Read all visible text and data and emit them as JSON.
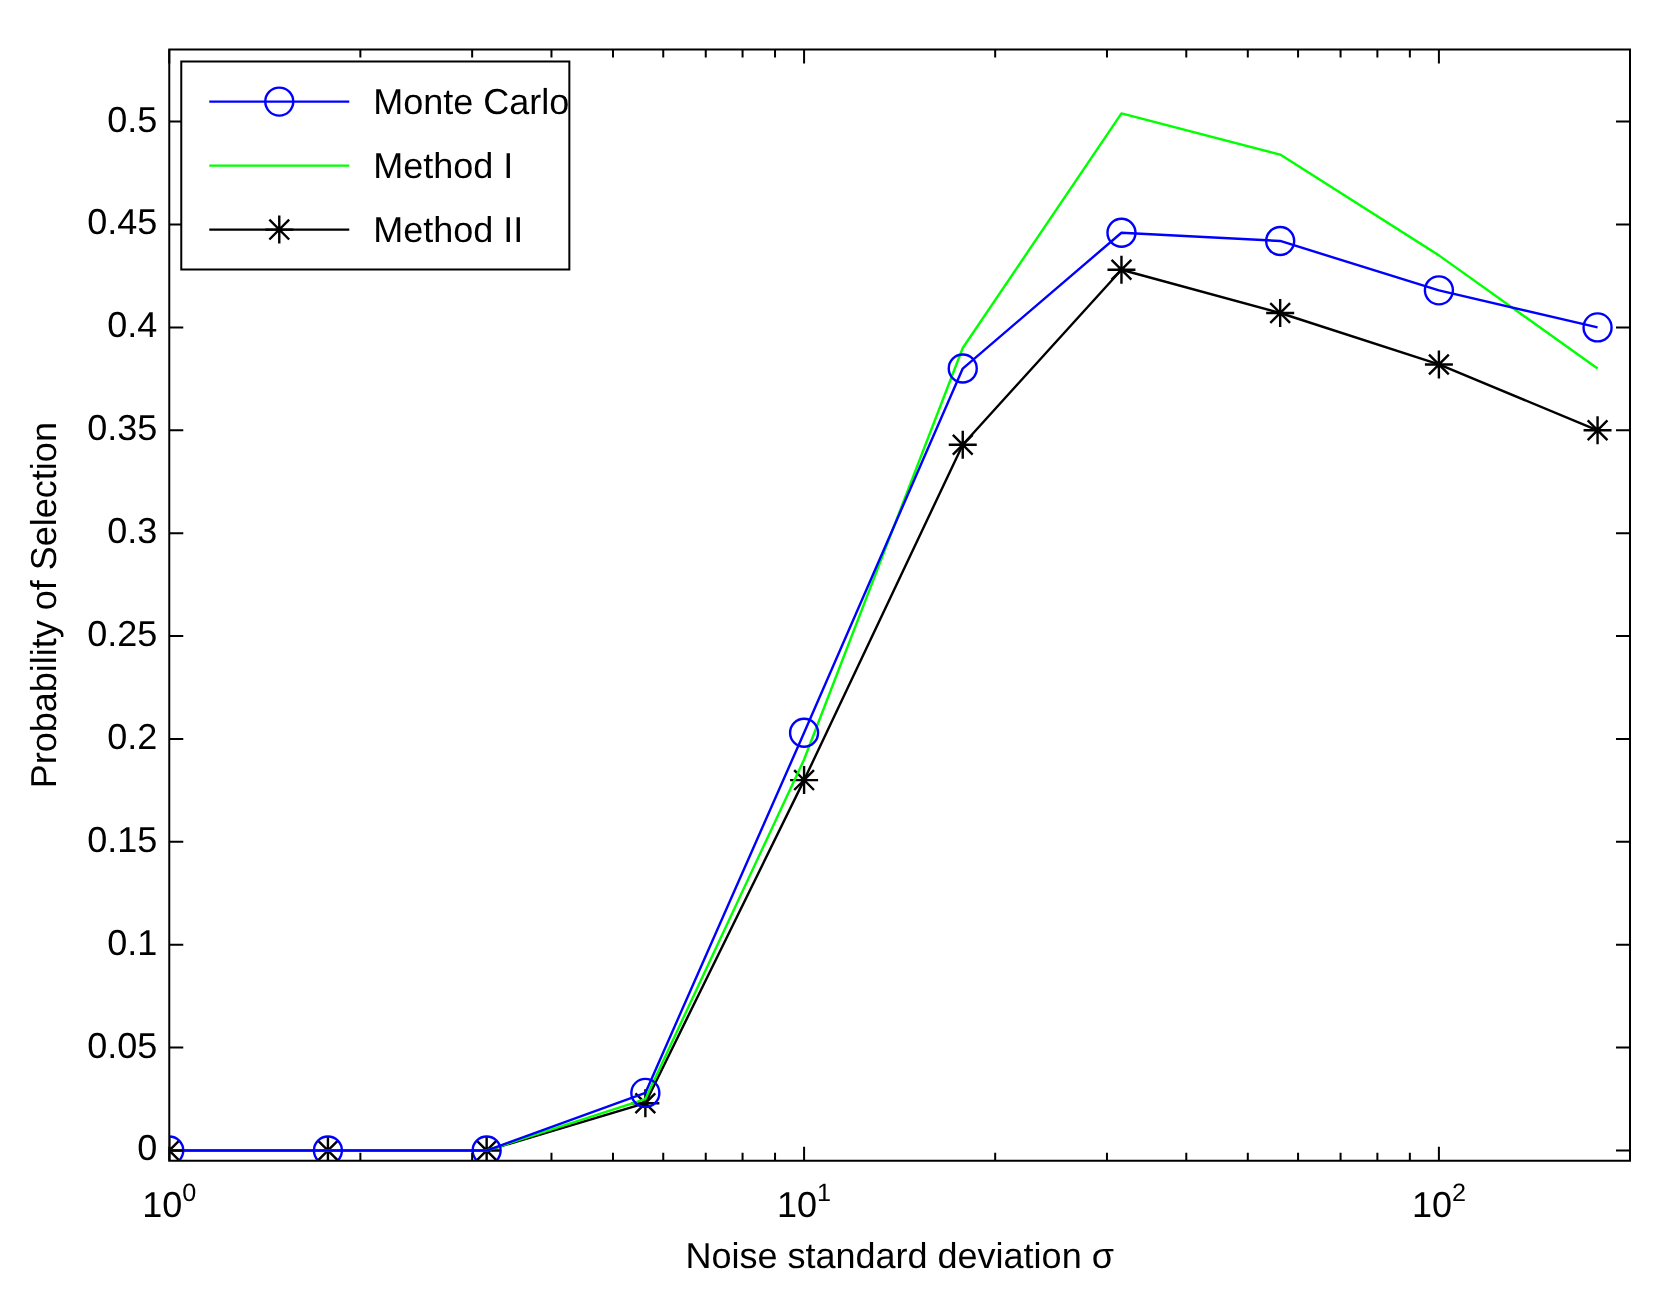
{
  "chart_data": {
    "type": "line",
    "xlabel": "Noise standard deviation σ",
    "ylabel": "Probability of Selection",
    "log": "x",
    "x": [
      1,
      1.778,
      3.162,
      5.623,
      10,
      17.78,
      31.62,
      56.23,
      100,
      177.8
    ],
    "series": [
      {
        "name": "Monte Carlo",
        "color": "#0000ff",
        "marker": "circle",
        "values": [
          0,
          0,
          0,
          0.028,
          0.203,
          0.38,
          0.446,
          0.442,
          0.418,
          0.4
        ]
      },
      {
        "name": "Method I",
        "color": "#00ff00",
        "marker": "none",
        "values": [
          0,
          0,
          0,
          0.025,
          0.19,
          0.39,
          0.504,
          0.484,
          0.435,
          0.38
        ]
      },
      {
        "name": "Method II",
        "color": "#000000",
        "marker": "cross",
        "values": [
          0,
          0,
          0,
          0.023,
          0.18,
          0.343,
          0.428,
          0.407,
          0.382,
          0.35
        ]
      }
    ],
    "xlim": [
      1,
      200
    ],
    "ylim": [
      -0.005,
      0.535
    ],
    "xticks": [
      {
        "value": 1,
        "label": "10$^{0}$"
      },
      {
        "value": 2,
        "label": null
      },
      {
        "value": 3,
        "label": null
      },
      {
        "value": 4,
        "label": null
      },
      {
        "value": 5,
        "label": null
      },
      {
        "value": 6,
        "label": null
      },
      {
        "value": 7,
        "label": null
      },
      {
        "value": 8,
        "label": null
      },
      {
        "value": 9,
        "label": null
      },
      {
        "value": 10,
        "label": "10$^{1}$"
      },
      {
        "value": 20,
        "label": null
      },
      {
        "value": 30,
        "label": null
      },
      {
        "value": 40,
        "label": null
      },
      {
        "value": 50,
        "label": null
      },
      {
        "value": 60,
        "label": null
      },
      {
        "value": 70,
        "label": null
      },
      {
        "value": 80,
        "label": null
      },
      {
        "value": 90,
        "label": null
      },
      {
        "value": 100,
        "label": "10$^{2}$"
      },
      {
        "value": 200,
        "label": null
      }
    ],
    "yticks": [
      0,
      0.05,
      0.1,
      0.15,
      0.2,
      0.25,
      0.3,
      0.35,
      0.4,
      0.45,
      0.5
    ],
    "grid": false,
    "legend": "top left"
  }
}
